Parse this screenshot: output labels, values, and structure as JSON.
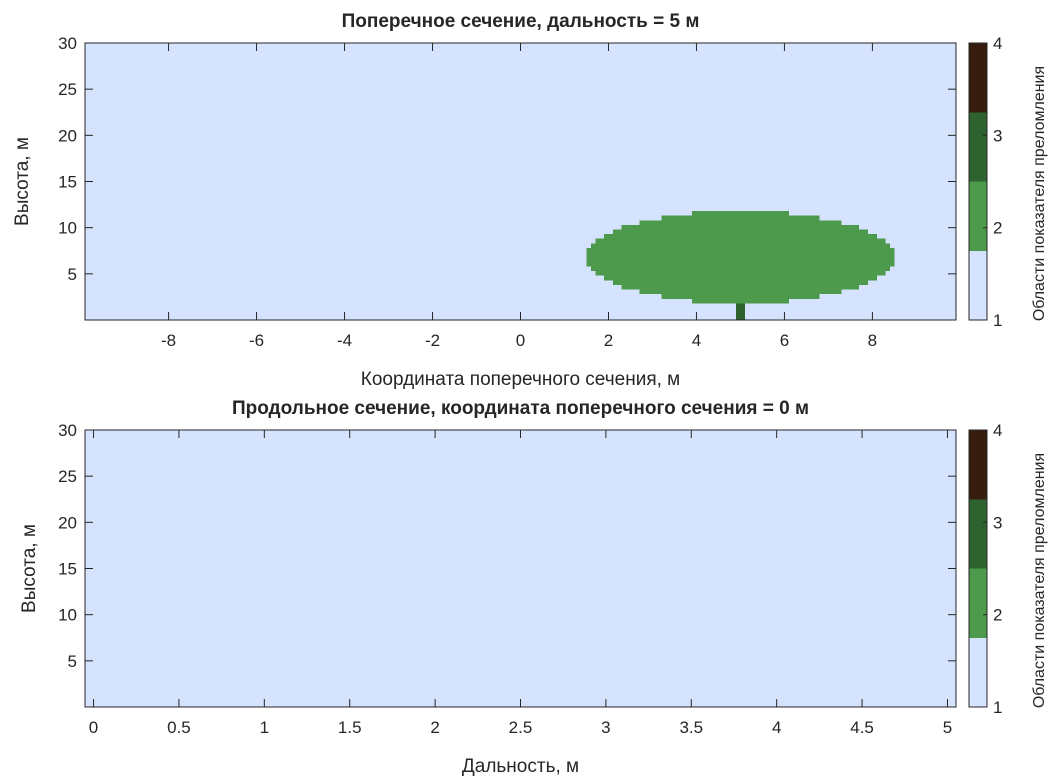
{
  "chart_data": [
    {
      "type": "heatmap",
      "title": "Поперечное сечение, дальность = 5 м",
      "xlabel": "Координата поперечного сечения, м",
      "ylabel": "Высота, м",
      "xlim": [
        -9.9,
        9.9
      ],
      "ylim": [
        0,
        30
      ],
      "xticks": [
        "-8",
        "-6",
        "-4",
        "-2",
        "0",
        "2",
        "4",
        "6",
        "8"
      ],
      "yticks": [
        "5",
        "10",
        "15",
        "20",
        "25",
        "30"
      ],
      "background_region": 1,
      "regions": [
        {
          "shape": "ellipse",
          "region": 2,
          "center_x": 5.0,
          "center_y": 6.8,
          "radius_x": 3.5,
          "radius_y": 5.0
        },
        {
          "shape": "rect",
          "region": 3,
          "x": [
            4.9,
            5.1
          ],
          "y": [
            0,
            1.8
          ]
        }
      ],
      "colorbar": {
        "label": "Области показателя преломления",
        "ticks": [
          "1",
          "2",
          "3",
          "4"
        ],
        "lim": [
          1,
          4
        ],
        "levels": [
          {
            "region": 1,
            "color": "#d6e3ff"
          },
          {
            "region": 2,
            "color": "#4d9a4d"
          },
          {
            "region": 3,
            "color": "#2e6330"
          },
          {
            "region": 4,
            "color": "#361d10"
          }
        ]
      }
    },
    {
      "type": "heatmap",
      "title": "Продольное сечение, координата поперечного сечения = 0 м",
      "xlabel": "Дальность, м",
      "ylabel": "Высота, м",
      "xlim": [
        -0.05,
        5.05
      ],
      "ylim": [
        0,
        30
      ],
      "xticks": [
        "0",
        "0.5",
        "1",
        "1.5",
        "2",
        "2.5",
        "3",
        "3.5",
        "4",
        "4.5",
        "5"
      ],
      "yticks": [
        "5",
        "10",
        "15",
        "20",
        "25",
        "30"
      ],
      "background_region": 1,
      "regions": [],
      "colorbar": {
        "label": "Области показателя преломления",
        "ticks": [
          "1",
          "2",
          "3",
          "4"
        ],
        "lim": [
          1,
          4
        ],
        "levels": [
          {
            "region": 1,
            "color": "#d6e3ff"
          },
          {
            "region": 2,
            "color": "#4d9a4d"
          },
          {
            "region": 3,
            "color": "#2e6330"
          },
          {
            "region": 4,
            "color": "#361d10"
          }
        ]
      }
    }
  ]
}
